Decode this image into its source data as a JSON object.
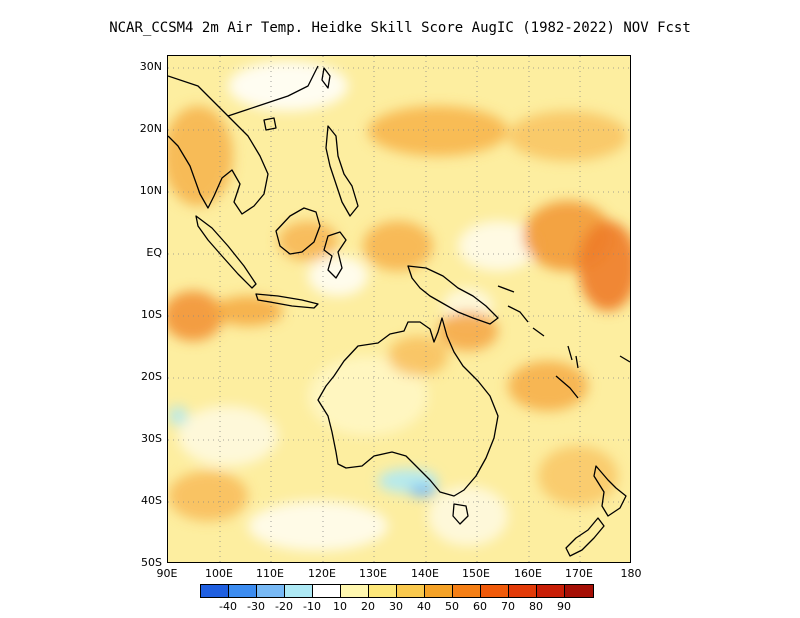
{
  "title": "NCAR_CCSM4  2m Air Temp. Heidke Skill Score AugIC (1982-2022) NOV Fcst",
  "map": {
    "lat_labels": [
      "30N",
      "20N",
      "10N",
      "EQ",
      "10S",
      "20S",
      "30S",
      "40S",
      "50S"
    ],
    "lon_labels": [
      "90E",
      "100E",
      "110E",
      "120E",
      "130E",
      "140E",
      "150E",
      "160E",
      "170E",
      "180"
    ],
    "grid": "dotted",
    "background_color": "#fff8c8"
  },
  "colorbar": {
    "colors": [
      "#1f5fe0",
      "#3c8cf0",
      "#78b9f5",
      "#aee9f5",
      "#ffffff",
      "#fff7b0",
      "#fde77a",
      "#fac94e",
      "#f5a227",
      "#f57f15",
      "#f05a0a",
      "#e23a08",
      "#c81e06",
      "#a50f05"
    ],
    "labels": [
      "-40",
      "-30",
      "-20",
      "-10",
      "10",
      "20",
      "30",
      "40",
      "50",
      "60",
      "70",
      "80",
      "90"
    ]
  }
}
